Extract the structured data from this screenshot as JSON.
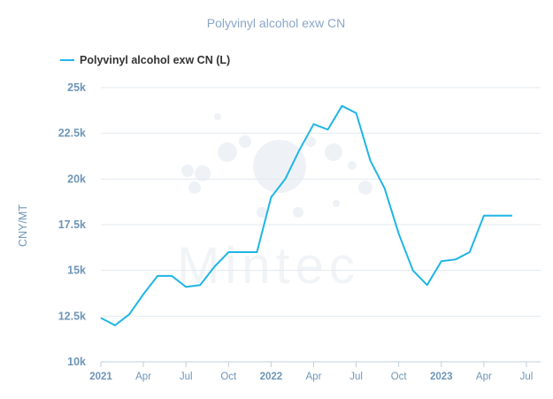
{
  "chart_data": {
    "type": "line",
    "title": "Polyvinyl alcohol exw CN",
    "ylabel": "CNY/MT",
    "xlabel": "",
    "ylim": [
      10000,
      25000
    ],
    "yticks": [
      {
        "value": 25000,
        "label": "25k"
      },
      {
        "value": 22500,
        "label": "22.5k"
      },
      {
        "value": 20000,
        "label": "20k"
      },
      {
        "value": 17500,
        "label": "17.5k"
      },
      {
        "value": 15000,
        "label": "15k"
      },
      {
        "value": 12500,
        "label": "12.5k"
      },
      {
        "value": 10000,
        "label": "10k"
      }
    ],
    "xlim": [
      "2021-01",
      "2023-08"
    ],
    "xticks": [
      {
        "month": "2021-01",
        "label": "2021",
        "year": true
      },
      {
        "month": "2021-04",
        "label": "Apr",
        "year": false
      },
      {
        "month": "2021-07",
        "label": "Jul",
        "year": false
      },
      {
        "month": "2021-10",
        "label": "Oct",
        "year": false
      },
      {
        "month": "2022-01",
        "label": "2022",
        "year": true
      },
      {
        "month": "2022-04",
        "label": "Apr",
        "year": false
      },
      {
        "month": "2022-07",
        "label": "Jul",
        "year": false
      },
      {
        "month": "2022-10",
        "label": "Oct",
        "year": false
      },
      {
        "month": "2023-01",
        "label": "2023",
        "year": true
      },
      {
        "month": "2023-04",
        "label": "Apr",
        "year": false
      },
      {
        "month": "2023-07",
        "label": "Jul",
        "year": false
      }
    ],
    "legend_position": "top-left",
    "grid": true,
    "series": [
      {
        "name": "Polyvinyl alcohol exw CN (L)",
        "color": "#1fb5e6",
        "points": [
          {
            "x": "2021-01",
            "y": 12400
          },
          {
            "x": "2021-02",
            "y": 12000
          },
          {
            "x": "2021-03",
            "y": 12600
          },
          {
            "x": "2021-04",
            "y": 13700
          },
          {
            "x": "2021-05",
            "y": 14700
          },
          {
            "x": "2021-06",
            "y": 14700
          },
          {
            "x": "2021-07",
            "y": 14100
          },
          {
            "x": "2021-08",
            "y": 14200
          },
          {
            "x": "2021-09",
            "y": 15200
          },
          {
            "x": "2021-10",
            "y": 16000
          },
          {
            "x": "2021-11",
            "y": 16000
          },
          {
            "x": "2021-12",
            "y": 16000
          },
          {
            "x": "2022-01",
            "y": 19000
          },
          {
            "x": "2022-02",
            "y": 20000
          },
          {
            "x": "2022-03",
            "y": 21600
          },
          {
            "x": "2022-04",
            "y": 23000
          },
          {
            "x": "2022-05",
            "y": 22700
          },
          {
            "x": "2022-06",
            "y": 24000
          },
          {
            "x": "2022-07",
            "y": 23600
          },
          {
            "x": "2022-08",
            "y": 21000
          },
          {
            "x": "2022-09",
            "y": 19500
          },
          {
            "x": "2022-10",
            "y": 17000
          },
          {
            "x": "2022-11",
            "y": 15000
          },
          {
            "x": "2022-12",
            "y": 14200
          },
          {
            "x": "2023-01",
            "y": 15500
          },
          {
            "x": "2023-02",
            "y": 15600
          },
          {
            "x": "2023-03",
            "y": 16000
          },
          {
            "x": "2023-04",
            "y": 18000
          },
          {
            "x": "2023-05",
            "y": 18000
          },
          {
            "x": "2023-06",
            "y": 18000
          }
        ]
      }
    ]
  }
}
